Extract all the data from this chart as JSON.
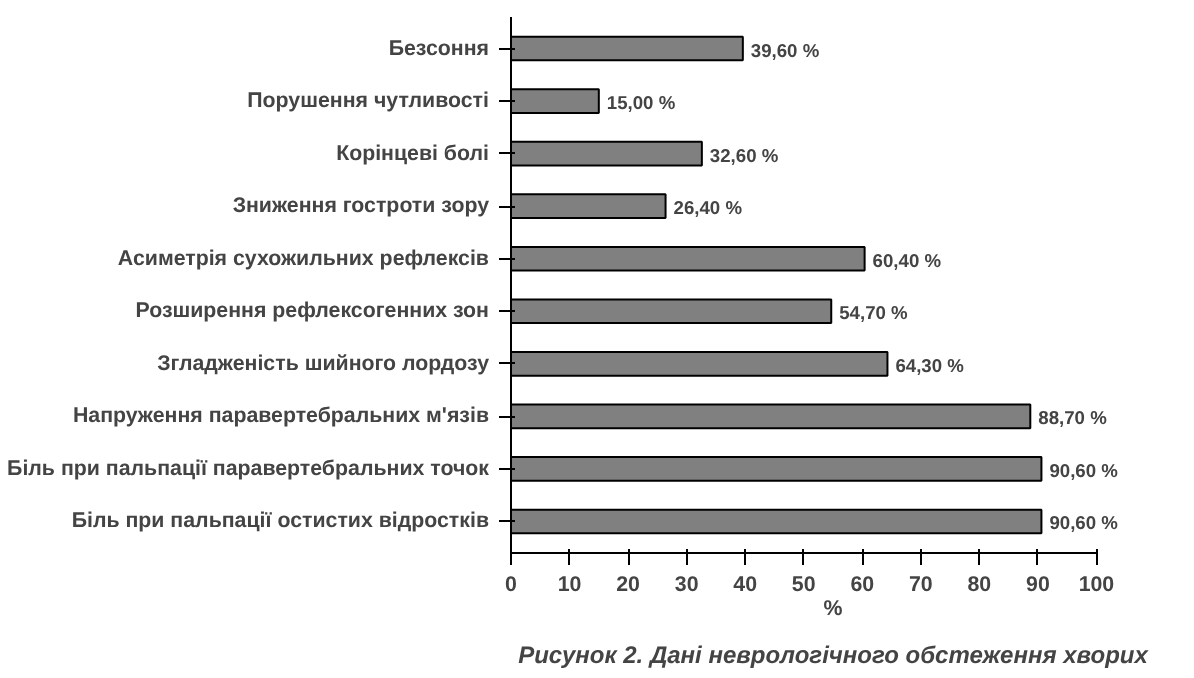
{
  "chart_data": {
    "type": "bar",
    "orientation": "horizontal",
    "title": "Рисунок 2. Дані неврологічного обстеження хворих",
    "xlabel": "%",
    "categories": [
      "Безсоння",
      "Порушення чутливості",
      "Корінцеві болі",
      "Зниження гостроти зору",
      "Асиметрія сухожильних рефлексів",
      "Розширення рефлексогенних зон",
      "Згладженість шийного лордозу",
      "Напруження паравертебральних м'язів",
      "Біль при пальпації паравертебральних точок",
      "Біль при пальпації остистих відростків"
    ],
    "values": [
      39.6,
      15.0,
      32.6,
      26.4,
      60.4,
      54.7,
      64.3,
      88.7,
      90.6,
      90.6
    ],
    "value_labels": [
      "39,60 %",
      "15,00 %",
      "32,60 %",
      "26,40 %",
      "60,40 %",
      "54,70 %",
      "64,30 %",
      "88,70 %",
      "90,60 %",
      "90,60 %"
    ],
    "color": "#808080",
    "xlim": [
      0,
      100
    ],
    "xticks": [
      0,
      10,
      20,
      30,
      40,
      50,
      60,
      70,
      80,
      90,
      100
    ],
    "grid": false
  }
}
